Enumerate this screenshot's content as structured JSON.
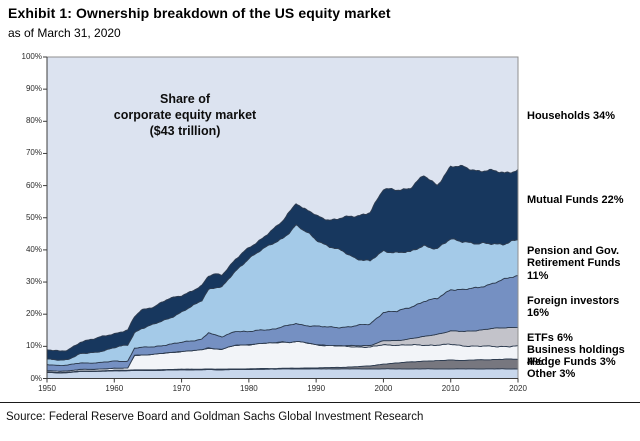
{
  "header": {
    "title": "Exhibit 1: Ownership breakdown of the US equity market",
    "subtitle": "as of March 31, 2020"
  },
  "annotation": {
    "line1": "Share of",
    "line2": "corporate equity market",
    "line3": "($43 trillion)"
  },
  "source": "Source: Federal Reserve Board and Goldman Sachs Global Investment Research",
  "chart_data": {
    "type": "area",
    "stacked": true,
    "normalized": true,
    "title": "Share of corporate equity market ($43 trillion)",
    "xlabel": "",
    "ylabel": "",
    "xlim": [
      1950,
      2020
    ],
    "ylim": [
      0,
      100
    ],
    "x_ticks": [
      1950,
      1960,
      1970,
      1980,
      1990,
      2000,
      2010,
      2020
    ],
    "y_ticks": [
      "0%",
      "10%",
      "20%",
      "30%",
      "40%",
      "50%",
      "60%",
      "70%",
      "80%",
      "90%",
      "100%"
    ],
    "grid": false,
    "legend_position": "right-outside",
    "x": [
      1950,
      1952,
      1953,
      1955,
      1957,
      1959,
      1960,
      1962,
      1963,
      1964,
      1966,
      1968,
      1970,
      1972,
      1973,
      1974,
      1975,
      1976,
      1978,
      1980,
      1982,
      1984,
      1985,
      1986,
      1987,
      1988,
      1989,
      1990,
      1992,
      1994,
      1996,
      1998,
      2000,
      2002,
      2004,
      2006,
      2008,
      2010,
      2012,
      2014,
      2016,
      2018,
      2020
    ],
    "series": [
      {
        "name": "other",
        "label": "Other 3%",
        "share_2020": 3,
        "color": "#c8d7ec",
        "values": [
          1.9,
          1.7,
          1.8,
          2.2,
          2.2,
          2.3,
          2.4,
          2.4,
          2.5,
          2.5,
          2.5,
          2.6,
          2.7,
          2.7,
          2.7,
          2.8,
          2.7,
          2.7,
          2.8,
          2.8,
          2.9,
          2.9,
          3.0,
          3.0,
          3.0,
          3.0,
          3.0,
          3.0,
          3.0,
          3.0,
          3.0,
          3.0,
          3.0,
          3.0,
          3.0,
          3.0,
          3.0,
          3.0,
          3.0,
          3.0,
          3.0,
          3.0,
          3.0
        ]
      },
      {
        "name": "hedge-funds",
        "label": "Hedge Funds 3%",
        "share_2020": 3,
        "color": "#77777f",
        "values": [
          0.15,
          0.15,
          0.15,
          0.15,
          0.15,
          0.15,
          0.2,
          0.2,
          0.2,
          0.2,
          0.2,
          0.2,
          0.2,
          0.2,
          0.2,
          0.2,
          0.2,
          0.2,
          0.2,
          0.2,
          0.2,
          0.2,
          0.2,
          0.2,
          0.2,
          0.25,
          0.3,
          0.3,
          0.4,
          0.5,
          0.7,
          0.9,
          1.5,
          1.8,
          2.2,
          2.4,
          2.5,
          2.8,
          2.6,
          2.8,
          2.9,
          3.0,
          3.0
        ]
      },
      {
        "name": "business-holdings",
        "label": "Business holdings 4%",
        "share_2020": 4,
        "color": "#f2f4f8",
        "values": [
          0.4,
          0.4,
          0.4,
          0.5,
          0.5,
          0.6,
          0.6,
          0.6,
          4.5,
          4.6,
          4.8,
          5.2,
          5.5,
          5.8,
          6.0,
          6.5,
          6.3,
          6.2,
          7.3,
          7.5,
          7.8,
          8.0,
          8.2,
          8.0,
          8.3,
          8.0,
          7.6,
          7.2,
          6.8,
          6.5,
          6.2,
          5.8,
          6.0,
          5.6,
          5.2,
          5.0,
          4.9,
          4.8,
          4.6,
          4.2,
          4.1,
          4.0,
          4.0
        ]
      },
      {
        "name": "etfs",
        "label": "ETFs 6%",
        "share_2020": 6,
        "color": "#c3c3ca",
        "values": [
          0,
          0,
          0,
          0,
          0,
          0,
          0,
          0,
          0,
          0,
          0,
          0,
          0,
          0,
          0,
          0,
          0,
          0,
          0,
          0,
          0,
          0,
          0,
          0,
          0,
          0,
          0,
          0,
          0.1,
          0.2,
          0.3,
          0.6,
          1.2,
          1.4,
          2.0,
          2.6,
          3.4,
          4.2,
          4.4,
          5.0,
          5.5,
          5.8,
          6.0
        ]
      },
      {
        "name": "foreign-investors",
        "label": "Foreign investors 16%",
        "share_2020": 16,
        "color": "#7590c2",
        "values": [
          1.9,
          1.8,
          1.8,
          2.0,
          2.0,
          2.1,
          2.2,
          2.2,
          2.3,
          2.3,
          2.4,
          2.6,
          2.8,
          3.2,
          3.4,
          4.8,
          4.2,
          3.8,
          4.5,
          4.0,
          4.2,
          4.4,
          4.8,
          5.2,
          5.6,
          5.4,
          5.6,
          5.8,
          5.6,
          5.8,
          6.2,
          6.6,
          9.0,
          9.0,
          9.8,
          11.0,
          11.0,
          13.0,
          13.0,
          13.2,
          14.0,
          15.0,
          16.0
        ]
      },
      {
        "name": "pension-gov-retirement-funds",
        "label": "Pension and Gov.\nRetirement Funds 11%",
        "share_2020": 11,
        "color": "#a4cae8",
        "values": [
          1.6,
          1.7,
          1.8,
          2.8,
          3.2,
          3.9,
          4.2,
          5.0,
          4.8,
          6.0,
          7.0,
          8.0,
          9.5,
          11.0,
          12.0,
          13.5,
          15.0,
          15.5,
          18.5,
          23.0,
          25.0,
          27.0,
          27.5,
          29.0,
          30.5,
          29.5,
          28.5,
          27.0,
          25.0,
          23.5,
          21.0,
          19.5,
          19.0,
          18.5,
          17.0,
          17.5,
          15.5,
          15.5,
          15.2,
          13.5,
          12.5,
          11.2,
          11.0
        ]
      },
      {
        "name": "mutual-funds",
        "label": "Mutual Funds 22%",
        "share_2020": 22,
        "color": "#17375e",
        "values": [
          3.1,
          2.6,
          2.8,
          3.8,
          4.2,
          4.5,
          4.4,
          4.6,
          4.8,
          5.7,
          5.6,
          6.0,
          5.2,
          4.8,
          4.4,
          4.0,
          4.2,
          4.0,
          3.6,
          3.2,
          3.6,
          4.4,
          5.2,
          6.4,
          7.2,
          6.8,
          7.0,
          7.2,
          8.5,
          10.5,
          13.0,
          15.5,
          19.0,
          19.5,
          20.0,
          21.5,
          20.0,
          22.5,
          23.0,
          23.0,
          22.5,
          22.0,
          22.0
        ]
      },
      {
        "name": "households",
        "label": "Households 34%",
        "share_2020": 34,
        "color": "#dce3f0",
        "remainder": true
      }
    ],
    "outline_color": "#2e3c50",
    "axis_color": "#3c3c3c",
    "border_color": "#8f8f8f"
  }
}
